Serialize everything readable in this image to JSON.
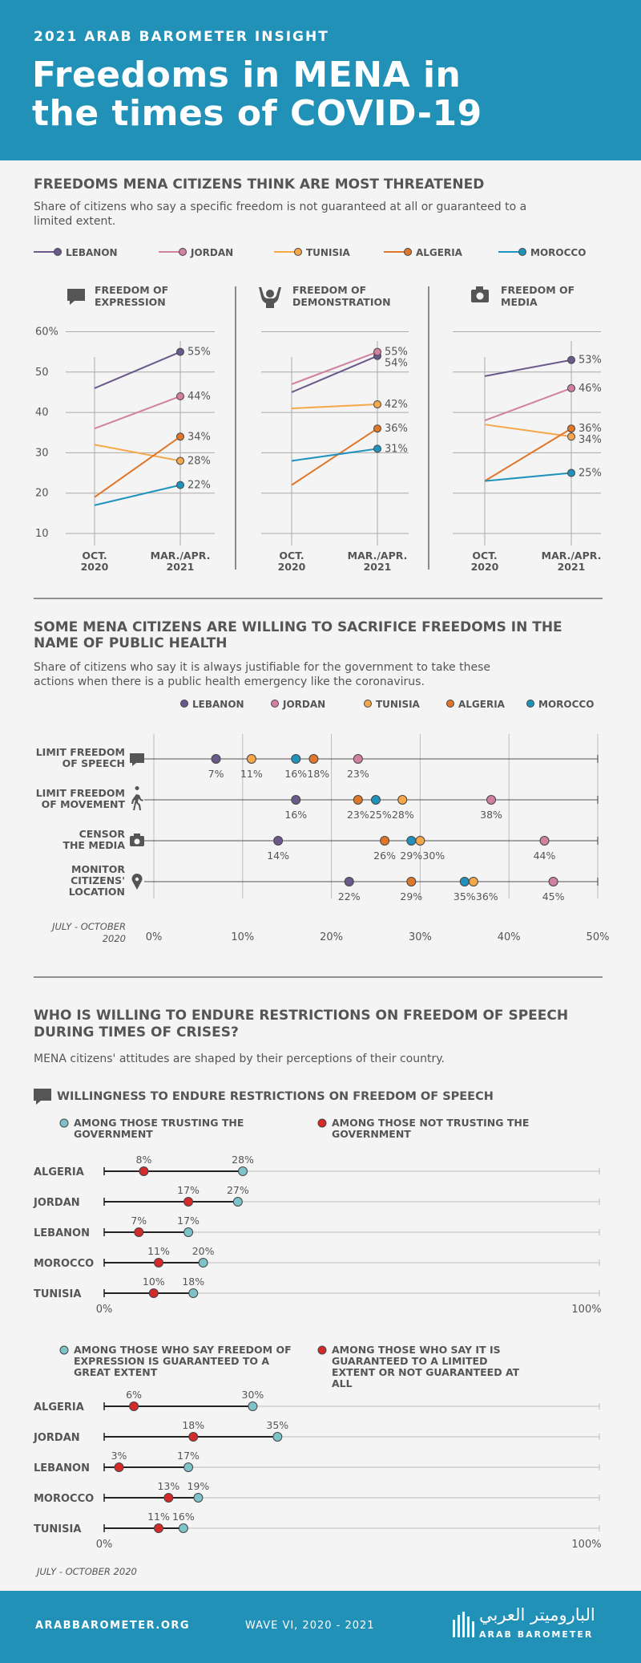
{
  "header": {
    "brand": "2021 ARAB BAROMETER INSIGHT",
    "title_line1": "Freedoms in MENA in",
    "title_line2": "the times of COVID-19"
  },
  "colors": {
    "header_bg": "#2291b8",
    "Lebanon": "#6a5a8c",
    "Jordan": "#d080a0",
    "Tunisia": "#f5a84a",
    "Algeria": "#e0762a",
    "Morocco": "#1f93bd",
    "trust": "#7fc3ca",
    "not_trust": "#d42a2a"
  },
  "footer": {
    "site": "ARABBAROMETER.ORG",
    "wave": "WAVE VI, 2020 - 2021",
    "logo_arabic": "الباروميتر العربي",
    "logo_text": "ARAB BAROMETER"
  },
  "section1": {
    "title": "FREEDOMS MENA CITIZENS THINK ARE MOST THREATENED",
    "subtitle_line1": "Share of citizens who say a specific freedom is not guaranteed at all or guaranteed to a",
    "subtitle_line2": "limited extent."
  },
  "section2": {
    "title_line1": "SOME MENA CITIZENS ARE WILLING TO SACRIFICE FREEDOMS IN THE",
    "title_line2": "NAME OF PUBLIC HEALTH",
    "subtitle_line1": "Share of citizens who say it is always justifiable for the government to take these",
    "subtitle_line2": "actions when there is a public health emergency like the coronavirus.",
    "note_line1": "JULY - OCTOBER",
    "note_line2": "2020"
  },
  "section3": {
    "title_line1": "WHO IS WILLING TO ENDURE RESTRICTIONS ON FREEDOM OF SPEECH",
    "title_line2": "DURING TIMES OF CRISES?",
    "subtitle": "MENA citizens' attitudes are shaped by their perceptions of their country.",
    "subheading": "WILLINGNESS TO ENDURE RESTRICTIONS ON FREEDOM OF SPEECH",
    "note": "JULY - OCTOBER 2020"
  },
  "chart_data": [
    {
      "type": "line",
      "group": "Freedom of expression",
      "title": "FREEDOM OF EXPRESSION",
      "icon": "speech-bubble-icon",
      "x": [
        "OCT. 2020",
        "MAR./APR. 2021"
      ],
      "ylim": [
        10,
        60
      ],
      "yticks": [
        "60%",
        "50",
        "40",
        "30",
        "20",
        "10"
      ],
      "series": [
        {
          "name": "LEBANON",
          "values": [
            46,
            55
          ]
        },
        {
          "name": "JORDAN",
          "values": [
            36,
            44
          ]
        },
        {
          "name": "TUNISIA",
          "values": [
            32,
            28
          ]
        },
        {
          "name": "ALGERIA",
          "values": [
            19,
            34
          ]
        },
        {
          "name": "MOROCCO",
          "values": [
            17,
            22
          ]
        }
      ],
      "end_labels": [
        "55%",
        "44%",
        "34%",
        "28%",
        "22%"
      ]
    },
    {
      "type": "line",
      "group": "Freedom of demonstration",
      "title": "FREEDOM OF DEMONSTRATION",
      "icon": "protest-icon",
      "x": [
        "OCT. 2020",
        "MAR./APR. 2021"
      ],
      "ylim": [
        10,
        60
      ],
      "series": [
        {
          "name": "LEBANON",
          "values": [
            45,
            54
          ]
        },
        {
          "name": "JORDAN",
          "values": [
            47,
            55
          ]
        },
        {
          "name": "TUNISIA",
          "values": [
            41,
            42
          ]
        },
        {
          "name": "ALGERIA",
          "values": [
            22,
            36
          ]
        },
        {
          "name": "MOROCCO",
          "values": [
            28,
            31
          ]
        }
      ],
      "end_labels": [
        "55%",
        "54%",
        "42%",
        "36%",
        "31%"
      ]
    },
    {
      "type": "line",
      "group": "Freedom of media",
      "title": "FREEDOM OF MEDIA",
      "icon": "camera-icon",
      "x": [
        "OCT. 2020",
        "MAR./APR. 2021"
      ],
      "ylim": [
        10,
        60
      ],
      "series": [
        {
          "name": "LEBANON",
          "values": [
            49,
            53
          ]
        },
        {
          "name": "JORDAN",
          "values": [
            38,
            46
          ]
        },
        {
          "name": "TUNISIA",
          "values": [
            37,
            34
          ]
        },
        {
          "name": "ALGERIA",
          "values": [
            23,
            36
          ]
        },
        {
          "name": "MOROCCO",
          "values": [
            23,
            25
          ]
        }
      ],
      "end_labels": [
        "53%",
        "46%",
        "36%",
        "34%",
        "25%"
      ]
    },
    {
      "type": "scatter",
      "group": "Sacrifice freedoms for public health",
      "categories": [
        "LIMIT FREEDOM OF SPEECH",
        "LIMIT FREEDOM OF MOVEMENT",
        "CENSOR THE MEDIA",
        "MONITOR CITIZENS' LOCATION"
      ],
      "xlim": [
        0,
        50
      ],
      "xticks": [
        "0%",
        "10%",
        "20%",
        "30%",
        "40%",
        "50%"
      ],
      "series": [
        {
          "name": "LEBANON",
          "values": [
            7,
            16,
            14,
            22
          ]
        },
        {
          "name": "JORDAN",
          "values": [
            23,
            38,
            44,
            45
          ]
        },
        {
          "name": "TUNISIA",
          "values": [
            11,
            28,
            30,
            36
          ]
        },
        {
          "name": "ALGERIA",
          "values": [
            18,
            23,
            26,
            29
          ]
        },
        {
          "name": "MOROCCO",
          "values": [
            16,
            25,
            29,
            35
          ]
        }
      ]
    },
    {
      "type": "scatter",
      "group": "Willingness by trust in government",
      "legend": [
        "AMONG THOSE TRUSTING THE GOVERNMENT",
        "AMONG THOSE NOT TRUSTING THE GOVERNMENT"
      ],
      "categories": [
        "ALGERIA",
        "JORDAN",
        "LEBANON",
        "MOROCCO",
        "TUNISIA"
      ],
      "xlim": [
        0,
        100
      ],
      "xticks": [
        "0%",
        "100%"
      ],
      "series": [
        {
          "name": "AMONG THOSE TRUSTING THE GOVERNMENT",
          "values": [
            28,
            27,
            17,
            20,
            18
          ]
        },
        {
          "name": "AMONG THOSE NOT TRUSTING THE GOVERNMENT",
          "values": [
            8,
            17,
            7,
            11,
            10
          ]
        }
      ]
    },
    {
      "type": "scatter",
      "group": "Willingness by perceived freedom of expression",
      "legend": [
        "AMONG THOSE WHO SAY FREEDOM OF EXPRESSION IS GUARANTEED TO A GREAT EXTENT",
        "AMONG THOSE WHO SAY IT IS GUARANTEED TO A LIMITED EXTENT OR NOT GUARANTEED AT ALL"
      ],
      "categories": [
        "ALGERIA",
        "JORDAN",
        "LEBANON",
        "MOROCCO",
        "TUNISIA"
      ],
      "xlim": [
        0,
        100
      ],
      "xticks": [
        "0%",
        "100%"
      ],
      "series": [
        {
          "name": "AMONG THOSE WHO SAY FREEDOM OF EXPRESSION IS GUARANTEED TO A GREAT EXTENT",
          "values": [
            30,
            35,
            17,
            19,
            16
          ]
        },
        {
          "name": "AMONG THOSE WHO SAY IT IS GUARANTEED TO A LIMITED EXTENT OR NOT GUARANTEED AT ALL",
          "values": [
            6,
            18,
            3,
            13,
            11
          ]
        }
      ]
    }
  ]
}
